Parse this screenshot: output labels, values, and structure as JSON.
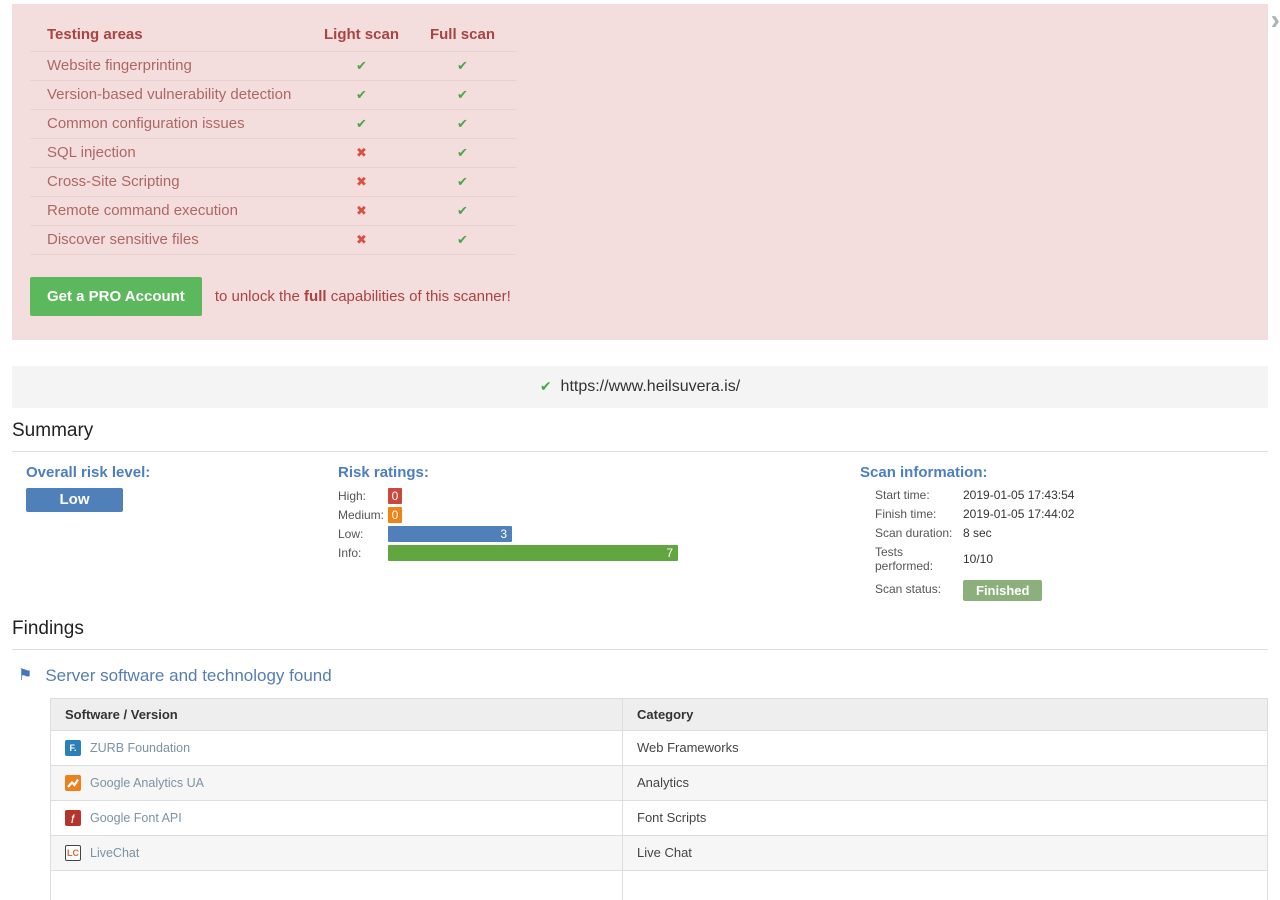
{
  "ui": {
    "next_arrow": "›",
    "glyphs": {
      "check": "✔",
      "cross": "✖",
      "flag": "⚑"
    }
  },
  "colors": {
    "panel_pink": "#f4dedd",
    "maroon_text": "#a94442",
    "check_green": "#45a845",
    "cross_red": "#dc4e41",
    "button_green": "#5cb85c",
    "label_blue": "#4d7ec0",
    "risk_high": "#c9473f",
    "risk_medium": "#ef8318",
    "risk_low": "#4f80ba",
    "risk_info": "#61a63e",
    "finished_badge_green": "#8cb07c"
  },
  "upsell": {
    "table": {
      "columns": [
        "Testing areas",
        "Light scan",
        "Full scan"
      ],
      "rows": [
        {
          "area": "Website fingerprinting",
          "light": "check",
          "full": "check"
        },
        {
          "area": "Version-based vulnerability detection",
          "light": "check",
          "full": "check"
        },
        {
          "area": "Common configuration issues",
          "light": "check",
          "full": "check"
        },
        {
          "area": "SQL injection",
          "light": "cross",
          "full": "check"
        },
        {
          "area": "Cross-Site Scripting",
          "light": "cross",
          "full": "check"
        },
        {
          "area": "Remote command execution",
          "light": "cross",
          "full": "check"
        },
        {
          "area": "Discover sensitive files",
          "light": "cross",
          "full": "check"
        }
      ]
    },
    "button_label": "Get a PRO Account",
    "message_pre": "to unlock the",
    "message_bold": "full",
    "message_post": "capabilities of this scanner!"
  },
  "target": {
    "url": "https://www.heilsuvera.is/"
  },
  "summary": {
    "title": "Summary",
    "overall_risk_label": "Overall risk level:",
    "overall_risk_value": "Low",
    "risk_ratings": {
      "label": "Risk ratings:",
      "items": [
        {
          "name": "High:",
          "count": 0,
          "level": "high"
        },
        {
          "name": "Medium:",
          "count": 0,
          "level": "medium"
        },
        {
          "name": "Low:",
          "count": 3,
          "level": "low"
        },
        {
          "name": "Info:",
          "count": 7,
          "level": "info"
        }
      ]
    },
    "scan_info": {
      "label": "Scan information:",
      "rows": [
        {
          "label": "Start time:",
          "value": "2019-01-05 17:43:54"
        },
        {
          "label": "Finish time:",
          "value": "2019-01-05 17:44:02"
        },
        {
          "label": "Scan duration:",
          "value": "8 sec"
        },
        {
          "label": "Tests performed:",
          "value": "10/10"
        },
        {
          "label": "Scan status:",
          "value": "Finished",
          "style": "badge"
        }
      ]
    }
  },
  "findings": {
    "title": "Findings",
    "section_title": "Server software and technology found",
    "table": {
      "columns": [
        "Software / Version",
        "Category"
      ],
      "rows": [
        {
          "software": "ZURB Foundation",
          "category": "Web Frameworks",
          "icon": {
            "name": "zurb-foundation-icon",
            "glyph": "F.",
            "bg": "#2b7fb9",
            "fg": "#ffffff"
          }
        },
        {
          "software": "Google Analytics UA",
          "category": "Analytics",
          "icon": {
            "name": "google-analytics-icon",
            "kind": "zigzag",
            "bg": "#ee7f1d",
            "fg": "#ffffff"
          }
        },
        {
          "software": "Google Font API",
          "category": "Font Scripts",
          "icon": {
            "name": "google-font-api-icon",
            "glyph": "ƒ",
            "bg": "#b5342c",
            "fg": "#ffffff"
          }
        },
        {
          "software": "LiveChat",
          "category": "Live Chat",
          "icon": {
            "name": "livechat-icon",
            "glyph": "LC",
            "bg": "#ffffff",
            "fg": "#cf6a3c",
            "border": "#444444"
          }
        }
      ]
    }
  }
}
